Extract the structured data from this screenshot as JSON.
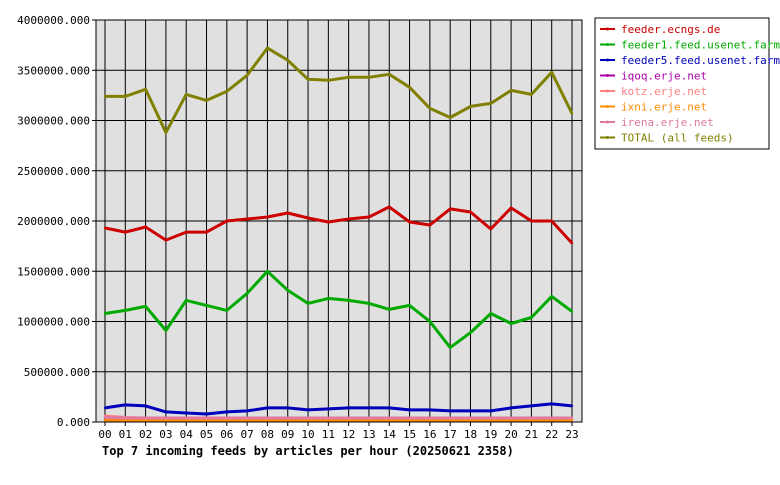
{
  "chart_data": {
    "type": "line",
    "title": "Top 7 incoming feeds by articles per hour (20250621 2358)",
    "xlabel": "",
    "ylabel": "",
    "ylim": [
      0,
      4000000
    ],
    "y_ticks": [
      "0.000",
      "500000.000",
      "1000000.000",
      "1500000.000",
      "2000000.000",
      "2500000.000",
      "3000000.000",
      "3500000.000",
      "4000000.000"
    ],
    "y_tick_values": [
      0,
      500000,
      1000000,
      1500000,
      2000000,
      2500000,
      3000000,
      3500000,
      4000000
    ],
    "categories": [
      "00",
      "01",
      "02",
      "03",
      "04",
      "05",
      "06",
      "07",
      "08",
      "09",
      "10",
      "11",
      "12",
      "13",
      "14",
      "15",
      "16",
      "17",
      "18",
      "19",
      "20",
      "21",
      "22",
      "23"
    ],
    "grid": true,
    "legend_position": "right",
    "plot_background": "#e0e0e0",
    "series": [
      {
        "name": "feeder.ecngs.de",
        "color": "#cc0000",
        "values": [
          1930000,
          1890000,
          1940000,
          1810000,
          1890000,
          1890000,
          2000000,
          2020000,
          2040000,
          2080000,
          2030000,
          1990000,
          2020000,
          2040000,
          2140000,
          1990000,
          1960000,
          2120000,
          2090000,
          1920000,
          2130000,
          2000000,
          2000000,
          1780000
        ]
      },
      {
        "name": "feeder1.feed.usenet.farm",
        "color": "#00aa00",
        "values": [
          1080000,
          1110000,
          1150000,
          910000,
          1210000,
          1160000,
          1110000,
          1280000,
          1500000,
          1310000,
          1180000,
          1230000,
          1210000,
          1180000,
          1120000,
          1160000,
          1000000,
          740000,
          890000,
          1080000,
          980000,
          1040000,
          1250000,
          1100000
        ]
      },
      {
        "name": "feeder5.feed.usenet.farm",
        "color": "#0000bb",
        "values": [
          140000,
          170000,
          160000,
          100000,
          90000,
          80000,
          100000,
          110000,
          140000,
          140000,
          120000,
          130000,
          140000,
          140000,
          140000,
          120000,
          120000,
          110000,
          110000,
          110000,
          140000,
          160000,
          180000,
          160000
        ]
      },
      {
        "name": "iqoq.erje.net",
        "color": "#aa00aa",
        "values": [
          30000,
          30000,
          30000,
          30000,
          30000,
          30000,
          30000,
          30000,
          30000,
          30000,
          30000,
          30000,
          30000,
          30000,
          30000,
          30000,
          30000,
          30000,
          30000,
          30000,
          30000,
          30000,
          30000,
          30000
        ]
      },
      {
        "name": "kotz.erje.net",
        "color": "#ff8080",
        "values": [
          60000,
          45000,
          40000,
          35000,
          35000,
          35000,
          35000,
          35000,
          35000,
          35000,
          35000,
          35000,
          35000,
          35000,
          35000,
          35000,
          35000,
          35000,
          35000,
          35000,
          35000,
          40000,
          40000,
          40000
        ]
      },
      {
        "name": "ixni.erje.net",
        "color": "#ff8c00",
        "values": [
          20000,
          20000,
          20000,
          20000,
          20000,
          20000,
          20000,
          20000,
          20000,
          20000,
          20000,
          20000,
          20000,
          20000,
          20000,
          20000,
          20000,
          20000,
          20000,
          20000,
          20000,
          20000,
          20000,
          20000
        ]
      },
      {
        "name": "irena.erje.net",
        "color": "#e07aa0",
        "values": [
          45000,
          40000,
          40000,
          40000,
          40000,
          40000,
          40000,
          40000,
          40000,
          40000,
          40000,
          40000,
          40000,
          40000,
          40000,
          40000,
          40000,
          40000,
          40000,
          40000,
          40000,
          40000,
          40000,
          40000
        ]
      },
      {
        "name": "TOTAL (all feeds)",
        "color": "#808000",
        "values": [
          3240000,
          3240000,
          3310000,
          2880000,
          3260000,
          3200000,
          3290000,
          3450000,
          3720000,
          3600000,
          3410000,
          3400000,
          3430000,
          3430000,
          3460000,
          3330000,
          3120000,
          3030000,
          3140000,
          3170000,
          3300000,
          3260000,
          3480000,
          3070000
        ]
      }
    ]
  }
}
